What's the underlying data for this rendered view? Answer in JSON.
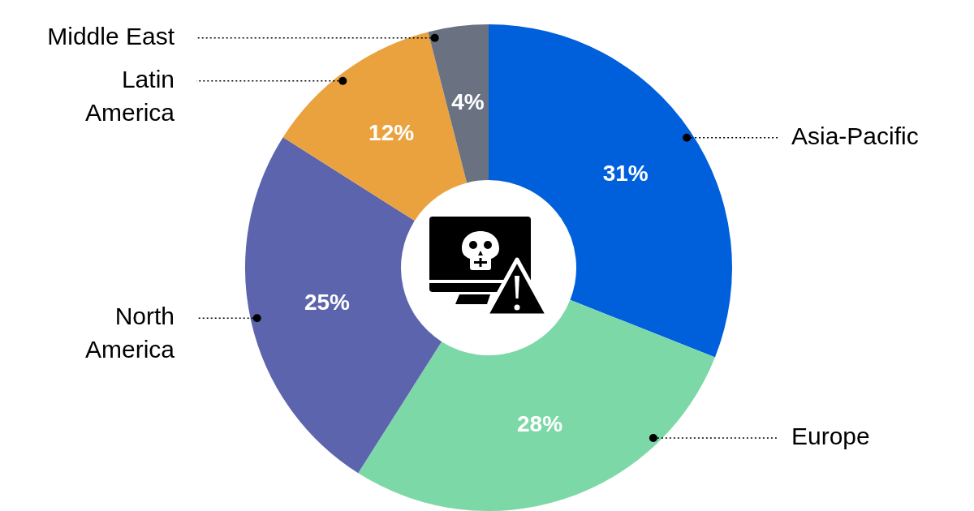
{
  "chart_data": {
    "type": "donut",
    "categories": [
      "Asia-Pacific",
      "Europe",
      "North America",
      "Latin America",
      "Middle East"
    ],
    "values": [
      31,
      28,
      25,
      12,
      4
    ],
    "colors": [
      "#0060dc",
      "#7dd8a8",
      "#5c64ae",
      "#eaa23f",
      "#6a7282"
    ],
    "value_labels": [
      "31%",
      "28%",
      "25%",
      "12%",
      "4%"
    ]
  }
}
